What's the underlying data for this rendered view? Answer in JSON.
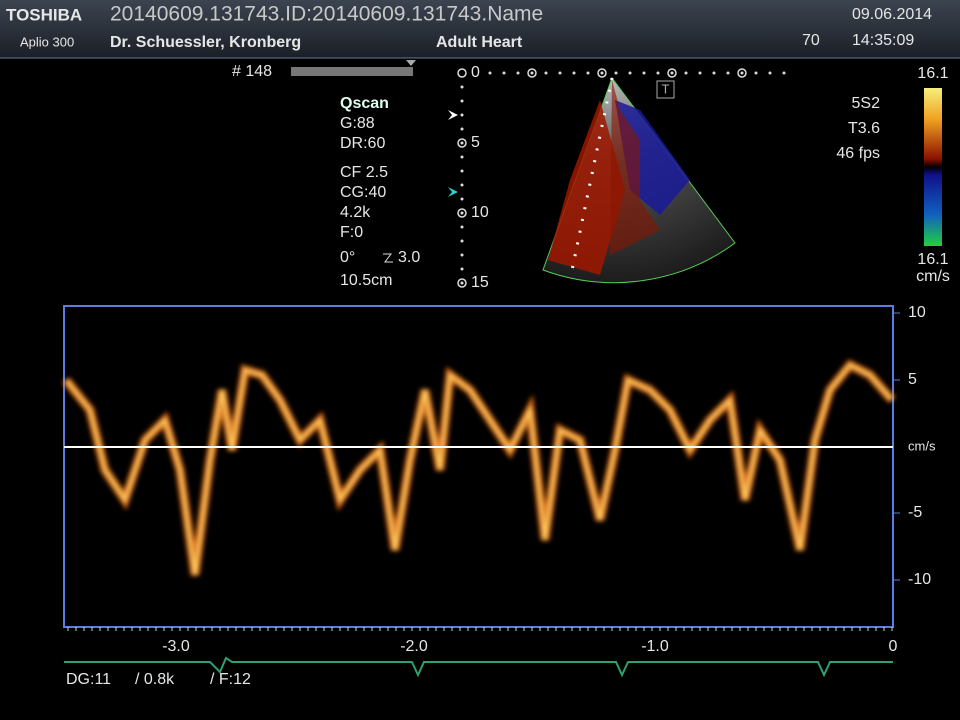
{
  "header": {
    "brand": "TOSHIBA",
    "model": "Aplio 300",
    "study": "20140609.131743.ID:20140609.131743.Name",
    "operator": "Dr. Schuessler, Kronberg",
    "preset": "Adult Heart",
    "index": "70",
    "date": "09.06.2014",
    "time": "14:35:09"
  },
  "frame": "# 148",
  "parameters": [
    "Qscan",
    "G:88",
    "DR:60",
    "CF 2.5",
    "CG:40",
    "4.2k",
    "F:0",
    "0°",
    "3.0",
    "10.5cm"
  ],
  "depth_labels": [
    "0",
    "5",
    "10",
    "15"
  ],
  "probe": [
    "5S2",
    "T3.6",
    "46 fps"
  ],
  "color_bar": {
    "top": "16.1",
    "bottom": "16.1",
    "unit": "cm/s"
  },
  "doppler": {
    "y_labels": [
      "10",
      "5",
      "cm/s",
      "-5",
      "-10"
    ],
    "x_labels": [
      "-3.0",
      "-2.0",
      "-1.0",
      "0"
    ]
  },
  "footer": [
    "DG:11",
    "/ 0.8k",
    "/ F:12"
  ]
}
